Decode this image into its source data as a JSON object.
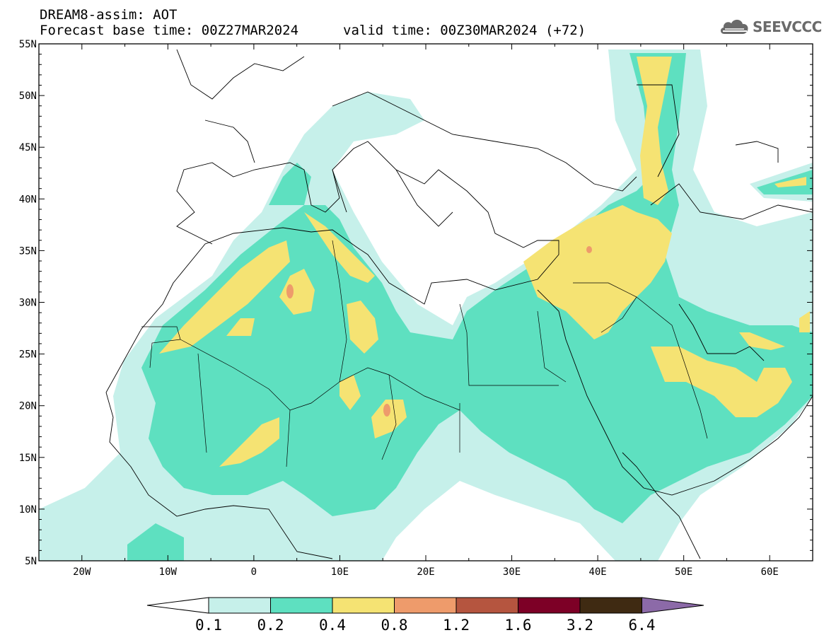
{
  "header": {
    "model_line": "DREAM8-assim: AOT",
    "base_time_line": "Forecast base time: 00Z27MAR2024",
    "valid_time_line": "valid time: 00Z30MAR2024 (+72)"
  },
  "logo": {
    "text": "SEEVCCC",
    "icon": "cloud-icon"
  },
  "map": {
    "lon_range": [
      -25,
      65
    ],
    "lat_range": [
      5,
      55
    ],
    "lat_ticks": [
      "55N",
      "50N",
      "45N",
      "40N",
      "35N",
      "30N",
      "25N",
      "20N",
      "15N",
      "10N",
      "5N"
    ],
    "lon_ticks": [
      "20W",
      "10W",
      "0",
      "10E",
      "20E",
      "30E",
      "40E",
      "50E",
      "60E"
    ]
  },
  "colorbar": {
    "labels": [
      "0.1",
      "0.2",
      "0.4",
      "0.8",
      "1.2",
      "1.6",
      "3.2",
      "6.4"
    ],
    "colors": [
      "#ffffff",
      "#c6f0ea",
      "#5ee0c0",
      "#f5e373",
      "#ee9b6b",
      "#b5553f",
      "#7d0026",
      "#3f2a12",
      "#8c6aa8"
    ]
  }
}
